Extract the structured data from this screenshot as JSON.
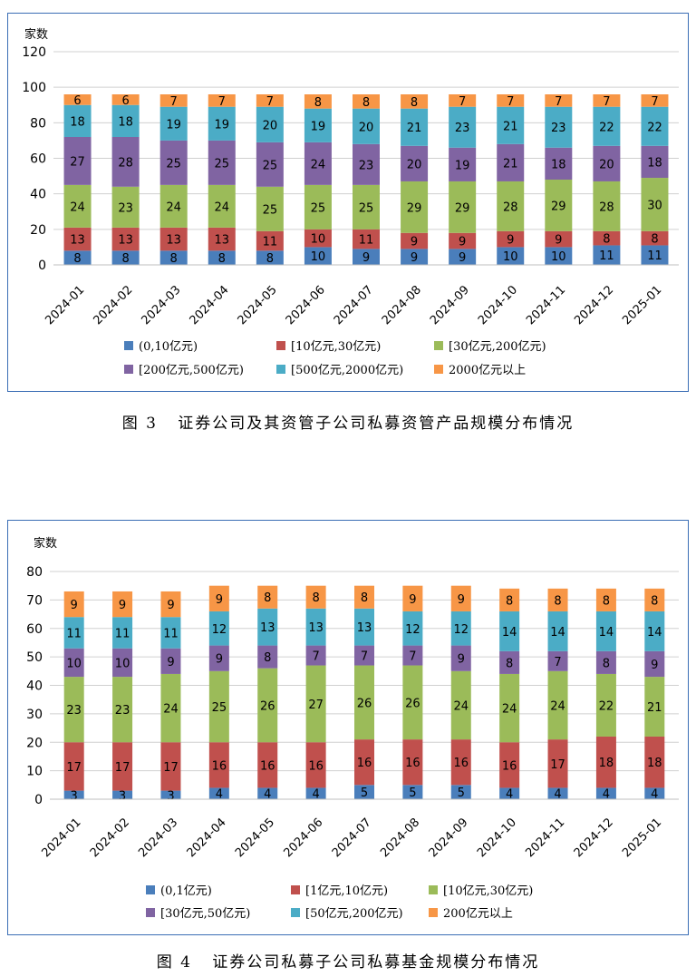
{
  "charts": [
    {
      "caption": "图 3   证券公司及其资管子公司私募资管产品规模分布情况",
      "chart_data": {
        "type": "bar",
        "stacked": true,
        "ylabel": "家数",
        "xlabel": "",
        "ylim": [
          0,
          120
        ],
        "yticks": [
          0,
          20,
          40,
          60,
          80,
          100,
          120
        ],
        "grid": true,
        "legend": "bottom",
        "categories": [
          "2024-01",
          "2024-02",
          "2024-03",
          "2024-04",
          "2024-05",
          "2024-06",
          "2024-07",
          "2024-08",
          "2024-09",
          "2024-10",
          "2024-11",
          "2024-12",
          "2025-01"
        ],
        "series": [
          {
            "name": "(0,10亿元)",
            "color": "#4a7ebb",
            "values": [
              8,
              8,
              8,
              8,
              8,
              10,
              9,
              9,
              9,
              10,
              10,
              11,
              11
            ]
          },
          {
            "name": "[10亿元,30亿元)",
            "color": "#c0504d",
            "values": [
              13,
              13,
              13,
              13,
              11,
              10,
              11,
              9,
              9,
              9,
              9,
              8,
              8
            ]
          },
          {
            "name": "[30亿元,200亿元)",
            "color": "#9bbb59",
            "values": [
              24,
              23,
              24,
              24,
              25,
              25,
              25,
              29,
              29,
              28,
              29,
              28,
              30
            ]
          },
          {
            "name": "[200亿元,500亿元)",
            "color": "#8064a2",
            "values": [
              27,
              28,
              25,
              25,
              25,
              24,
              23,
              20,
              19,
              21,
              18,
              20,
              18
            ]
          },
          {
            "name": "[500亿元,2000亿元)",
            "color": "#4bacc6",
            "values": [
              18,
              18,
              19,
              19,
              20,
              19,
              20,
              21,
              23,
              21,
              23,
              22,
              22
            ]
          },
          {
            "name": "2000亿元以上",
            "color": "#f79646",
            "values": [
              6,
              6,
              7,
              7,
              7,
              8,
              8,
              8,
              7,
              7,
              7,
              7,
              7
            ]
          }
        ]
      }
    },
    {
      "caption": "图 4   证券公司私募子公司私募基金规模分布情况",
      "chart_data": {
        "type": "bar",
        "stacked": true,
        "ylabel": "家数",
        "xlabel": "",
        "ylim": [
          0,
          80
        ],
        "yticks": [
          0,
          10,
          20,
          30,
          40,
          50,
          60,
          70,
          80
        ],
        "grid": true,
        "legend": "bottom",
        "categories": [
          "2024-01",
          "2024-02",
          "2024-03",
          "2024-04",
          "2024-05",
          "2024-06",
          "2024-07",
          "2024-08",
          "2024-09",
          "2024-10",
          "2024-11",
          "2024-12",
          "2025-01"
        ],
        "series": [
          {
            "name": "(0,1亿元)",
            "color": "#4a7ebb",
            "values": [
              3,
              3,
              3,
              4,
              4,
              4,
              5,
              5,
              5,
              4,
              4,
              4,
              4
            ]
          },
          {
            "name": "[1亿元,10亿元)",
            "color": "#c0504d",
            "values": [
              17,
              17,
              17,
              16,
              16,
              16,
              16,
              16,
              16,
              16,
              17,
              18,
              18
            ]
          },
          {
            "name": "[10亿元,30亿元)",
            "color": "#9bbb59",
            "values": [
              23,
              23,
              24,
              25,
              26,
              27,
              26,
              26,
              24,
              24,
              24,
              22,
              21
            ]
          },
          {
            "name": "[30亿元,50亿元)",
            "color": "#8064a2",
            "values": [
              10,
              10,
              9,
              9,
              8,
              7,
              7,
              7,
              9,
              8,
              7,
              8,
              9
            ]
          },
          {
            "name": "[50亿元,200亿元)",
            "color": "#4bacc6",
            "values": [
              11,
              11,
              11,
              12,
              13,
              13,
              13,
              12,
              12,
              14,
              14,
              14,
              14
            ]
          },
          {
            "name": "200亿元以上",
            "color": "#f79646",
            "values": [
              9,
              9,
              9,
              9,
              8,
              8,
              8,
              9,
              9,
              8,
              8,
              8,
              8
            ]
          }
        ]
      }
    }
  ]
}
